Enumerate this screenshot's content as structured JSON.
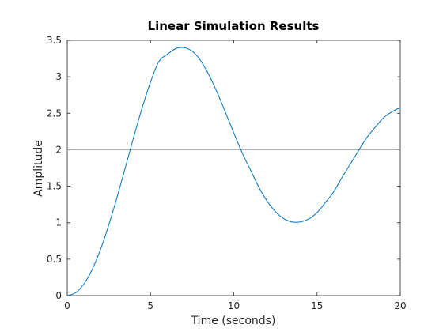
{
  "chart_data": {
    "type": "line",
    "title": "Linear Simulation Results",
    "xlabel": "Time (seconds)",
    "ylabel": "Amplitude",
    "xlim": [
      0,
      20
    ],
    "ylim": [
      0,
      3.5
    ],
    "x_ticks": [
      "0",
      "5",
      "10",
      "15",
      "20"
    ],
    "y_ticks": [
      "0",
      "0.5",
      "1",
      "1.5",
      "2",
      "2.5",
      "3",
      "3.5"
    ],
    "grid": false,
    "legend": "none",
    "reference_line": {
      "y": 2,
      "color": "#a0a0a0"
    },
    "series": [
      {
        "color": "#0072bd",
        "x": [
          0,
          0.5,
          1,
          1.5,
          2,
          2.5,
          3,
          3.5,
          4,
          4.5,
          5,
          5.5,
          6,
          6.5,
          7,
          7.5,
          8,
          8.5,
          9,
          9.5,
          10,
          10.5,
          11,
          11.5,
          12,
          12.5,
          13,
          13.5,
          14,
          14.5,
          15,
          15.5,
          16,
          16.5,
          17,
          17.5,
          18,
          18.5,
          19,
          19.5,
          20
        ],
        "y": [
          0,
          0.039,
          0.16,
          0.36,
          0.635,
          0.972,
          1.356,
          1.766,
          2.181,
          2.576,
          2.926,
          3.209,
          3.306,
          3.385,
          3.4,
          3.352,
          3.225,
          3.03,
          2.787,
          2.513,
          2.231,
          1.961,
          1.725,
          1.49,
          1.297,
          1.152,
          1.056,
          1.01,
          1.011,
          1.051,
          1.138,
          1.276,
          1.423,
          1.62,
          1.804,
          1.99,
          2.17,
          2.31,
          2.44,
          2.52,
          2.58
        ]
      }
    ]
  }
}
